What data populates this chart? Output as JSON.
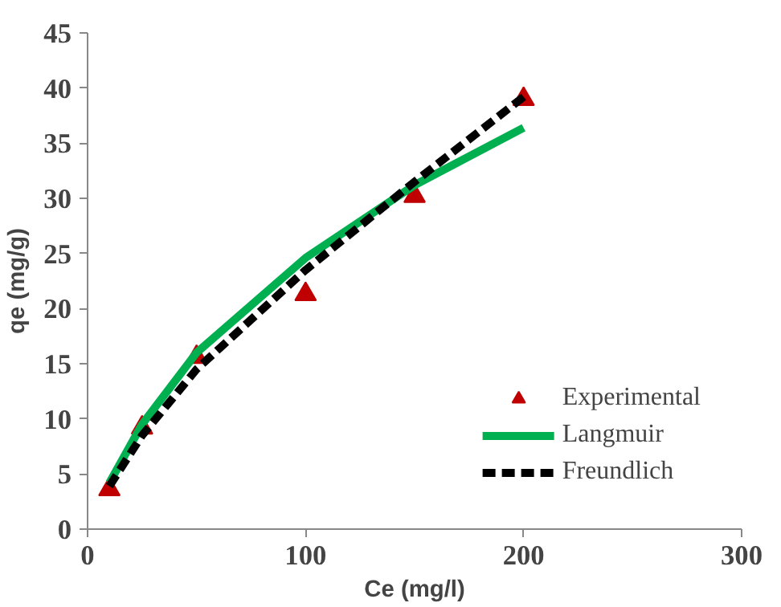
{
  "chart_data": {
    "type": "line",
    "xlabel": "Ce (mg/l)",
    "ylabel": "qe (mg/g)",
    "x": [
      10,
      25,
      50,
      100,
      150,
      200
    ],
    "series": [
      {
        "name": "Experimental",
        "type": "scatter",
        "marker": "triangle",
        "color": "#c00000",
        "values": [
          3.6,
          9.2,
          15.6,
          21.3,
          30.2,
          39.0
        ]
      },
      {
        "name": "Langmuir",
        "line_style": "solid",
        "color": "#00b050",
        "values": [
          4.2,
          9.5,
          16.0,
          24.6,
          31.2,
          36.4
        ]
      },
      {
        "name": "Freundlich",
        "line_style": "dashed",
        "color": "#000000",
        "values": [
          3.9,
          8.5,
          14.5,
          23.5,
          31.5,
          39.2
        ]
      }
    ],
    "xlim": [
      0,
      300
    ],
    "xticks": [
      0,
      100,
      200,
      300
    ],
    "ylim": [
      0,
      45
    ],
    "yticks": [
      0,
      5,
      10,
      15,
      20,
      25,
      30,
      35,
      40,
      45
    ],
    "grid": false,
    "legend": "bottom right"
  }
}
